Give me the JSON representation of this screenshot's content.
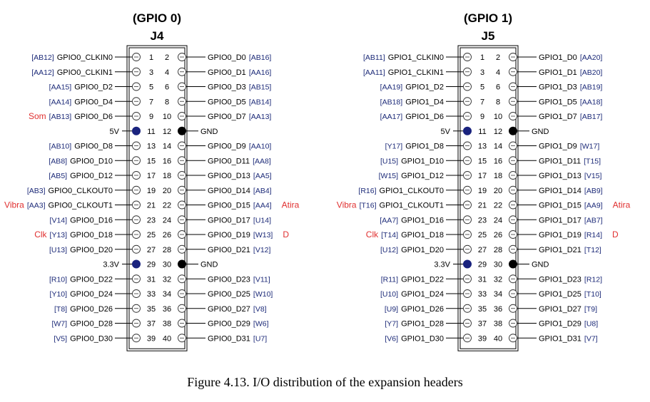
{
  "colors": {
    "pin_code": "#1c2a78",
    "note": "#e03030",
    "line": "#000000"
  },
  "headers": [
    {
      "title": "(GPIO 0)",
      "name": "J4",
      "rows": [
        {
          "left": {
            "code": "[AB12]",
            "label": "GPIO0_CLKIN0"
          },
          "right": {
            "label": "GPIO0_D0",
            "code": "[AB16]"
          }
        },
        {
          "left": {
            "code": "[AA12]",
            "label": "GPIO0_CLKIN1"
          },
          "right": {
            "label": "GPIO0_D1",
            "code": "[AA16]"
          }
        },
        {
          "left": {
            "code": "[AA15]",
            "label": "GPIO0_D2"
          },
          "right": {
            "label": "GPIO0_D3",
            "code": "[AB15]"
          }
        },
        {
          "left": {
            "code": "[AA14]",
            "label": "GPIO0_D4"
          },
          "right": {
            "label": "GPIO0_D5",
            "code": "[AB14]"
          }
        },
        {
          "left": {
            "code": "[AB13]",
            "label": "GPIO0_D6",
            "note": "Som"
          },
          "right": {
            "label": "GPIO0_D7",
            "code": "[AA13]"
          }
        },
        {
          "left": {
            "code": "",
            "label": "5V"
          },
          "right": {
            "label": "GND",
            "code": ""
          },
          "power": true
        },
        {
          "left": {
            "code": "[AB10]",
            "label": "GPIO0_D8"
          },
          "right": {
            "label": "GPIO0_D9",
            "code": "[AA10]"
          }
        },
        {
          "left": {
            "code": "[AB8]",
            "label": "GPIO0_D10"
          },
          "right": {
            "label": "GPIO0_D11",
            "code": "[AA8]"
          }
        },
        {
          "left": {
            "code": "[AB5]",
            "label": "GPIO0_D12"
          },
          "right": {
            "label": "GPIO0_D13",
            "code": "[AA5]"
          }
        },
        {
          "left": {
            "code": "[AB3]",
            "label": "GPIO0_CLKOUT0"
          },
          "right": {
            "label": "GPIO0_D14",
            "code": "[AB4]"
          }
        },
        {
          "left": {
            "code": "[AA3]",
            "label": "GPIO0_CLKOUT1",
            "note": "Vibra"
          },
          "right": {
            "label": "GPIO0_D15",
            "code": "[AA4]",
            "note": "Atira"
          }
        },
        {
          "left": {
            "code": "[V14]",
            "label": "GPIO0_D16"
          },
          "right": {
            "label": "GPIO0_D17",
            "code": "[U14]"
          }
        },
        {
          "left": {
            "code": "[Y13]",
            "label": "GPIO0_D18",
            "note": "Clk"
          },
          "right": {
            "label": "GPIO0_D19",
            "code": "[W13]",
            "note": "D"
          }
        },
        {
          "left": {
            "code": "[U13]",
            "label": "GPIO0_D20"
          },
          "right": {
            "label": "GPIO0_D21",
            "code": "[V12]"
          }
        },
        {
          "left": {
            "code": "",
            "label": "3.3V"
          },
          "right": {
            "label": "GND",
            "code": ""
          },
          "power": true
        },
        {
          "left": {
            "code": "[R10]",
            "label": "GPIO0_D22"
          },
          "right": {
            "label": "GPIO0_D23",
            "code": "[V11]"
          }
        },
        {
          "left": {
            "code": "[Y10]",
            "label": "GPIO0_D24"
          },
          "right": {
            "label": "GPIO0_D25",
            "code": "[W10]"
          }
        },
        {
          "left": {
            "code": "[T8]",
            "label": "GPIO0_D26"
          },
          "right": {
            "label": "GPIO0_D27",
            "code": "[V8]"
          }
        },
        {
          "left": {
            "code": "[W7]",
            "label": "GPIO0_D28"
          },
          "right": {
            "label": "GPIO0_D29",
            "code": "[W6]"
          }
        },
        {
          "left": {
            "code": "[V5]",
            "label": "GPIO0_D30"
          },
          "right": {
            "label": "GPIO0_D31",
            "code": "[U7]"
          }
        }
      ]
    },
    {
      "title": "(GPIO 1)",
      "name": "J5",
      "rows": [
        {
          "left": {
            "code": "[AB11]",
            "label": "GPIO1_CLKIN0"
          },
          "right": {
            "label": "GPIO1_D0",
            "code": "[AA20]"
          }
        },
        {
          "left": {
            "code": "[AA11]",
            "label": "GPIO1_CLKIN1"
          },
          "right": {
            "label": "GPIO1_D1",
            "code": "[AB20]"
          }
        },
        {
          "left": {
            "code": "[AA19]",
            "label": "GPIO1_D2"
          },
          "right": {
            "label": "GPIO1_D3",
            "code": "[AB19]"
          }
        },
        {
          "left": {
            "code": "[AB18]",
            "label": "GPIO1_D4"
          },
          "right": {
            "label": "GPIO1_D5",
            "code": "[AA18]"
          }
        },
        {
          "left": {
            "code": "[AA17]",
            "label": "GPIO1_D6"
          },
          "right": {
            "label": "GPIO1_D7",
            "code": "[AB17]"
          }
        },
        {
          "left": {
            "code": "",
            "label": "5V"
          },
          "right": {
            "label": "GND",
            "code": ""
          },
          "power": true
        },
        {
          "left": {
            "code": "[Y17]",
            "label": "GPIO1_D8"
          },
          "right": {
            "label": "GPIO1_D9",
            "code": "[W17]"
          }
        },
        {
          "left": {
            "code": "[U15]",
            "label": "GPIO1_D10"
          },
          "right": {
            "label": "GPIO1_D11",
            "code": "[T15]"
          }
        },
        {
          "left": {
            "code": "[W15]",
            "label": "GPIO1_D12"
          },
          "right": {
            "label": "GPIO1_D13",
            "code": "[V15]"
          }
        },
        {
          "left": {
            "code": "[R16]",
            "label": "GPIO1_CLKOUT0"
          },
          "right": {
            "label": "GPIO1_D14",
            "code": "[AB9]"
          }
        },
        {
          "left": {
            "code": "[T16]",
            "label": "GPIO1_CLKOUT1",
            "note": "Vibra"
          },
          "right": {
            "label": "GPIO1_D15",
            "code": "[AA9]",
            "note": "Atira"
          }
        },
        {
          "left": {
            "code": "[AA7]",
            "label": "GPIO1_D16"
          },
          "right": {
            "label": "GPIO1_D17",
            "code": "[AB7]"
          }
        },
        {
          "left": {
            "code": "[T14]",
            "label": "GPIO1_D18",
            "note": "Clk"
          },
          "right": {
            "label": "GPIO1_D19",
            "code": "[R14]",
            "note": "D"
          }
        },
        {
          "left": {
            "code": "[U12]",
            "label": "GPIO1_D20"
          },
          "right": {
            "label": "GPIO1_D21",
            "code": "[T12]"
          }
        },
        {
          "left": {
            "code": "",
            "label": "3.3V"
          },
          "right": {
            "label": "GND",
            "code": ""
          },
          "power": true
        },
        {
          "left": {
            "code": "[R11]",
            "label": "GPIO1_D22"
          },
          "right": {
            "label": "GPIO1_D23",
            "code": "[R12]"
          }
        },
        {
          "left": {
            "code": "[U10]",
            "label": "GPIO1_D24"
          },
          "right": {
            "label": "GPIO1_D25",
            "code": "[T10]"
          }
        },
        {
          "left": {
            "code": "[U9]",
            "label": "GPIO1_D26"
          },
          "right": {
            "label": "GPIO1_D27",
            "code": "[T9]"
          }
        },
        {
          "left": {
            "code": "[Y7]",
            "label": "GPIO1_D28"
          },
          "right": {
            "label": "GPIO1_D29",
            "code": "[U8]"
          }
        },
        {
          "left": {
            "code": "[V6]",
            "label": "GPIO1_D30"
          },
          "right": {
            "label": "GPIO1_D31",
            "code": "[V7]"
          }
        }
      ]
    }
  ],
  "caption": "Figure 4.13.   I/O distribution of the expansion headers"
}
